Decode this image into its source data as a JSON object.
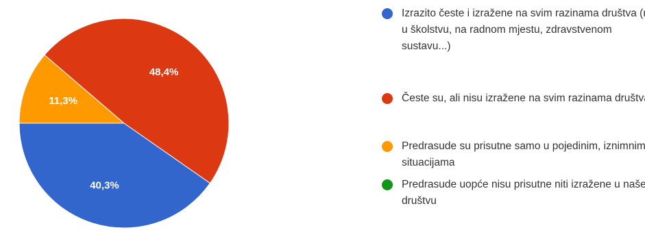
{
  "chart_data": {
    "type": "pie",
    "title": "",
    "slices": [
      {
        "label": "Izrazito česte i izražene na svim razinama društva (npr. u školstvu, na radnom mjestu, zdravstvenom sustavu...)",
        "value": 40.3,
        "display": "40,3%",
        "color": "#3366cc"
      },
      {
        "label": "Česte su, ali nisu izražene na svim razinama društva",
        "value": 48.4,
        "display": "48,4%",
        "color": "#dc3912"
      },
      {
        "label": "Predrasude su prisutne samo u pojedinim, iznimnim situacijama",
        "value": 11.3,
        "display": "11,3%",
        "color": "#ff9900"
      },
      {
        "label": "Predrasude uopće nisu prisutne niti izražene u našem društvu",
        "value": 0.0,
        "display": "",
        "color": "#109618"
      }
    ],
    "start_angle_deg": 90,
    "legend_position": "right"
  }
}
